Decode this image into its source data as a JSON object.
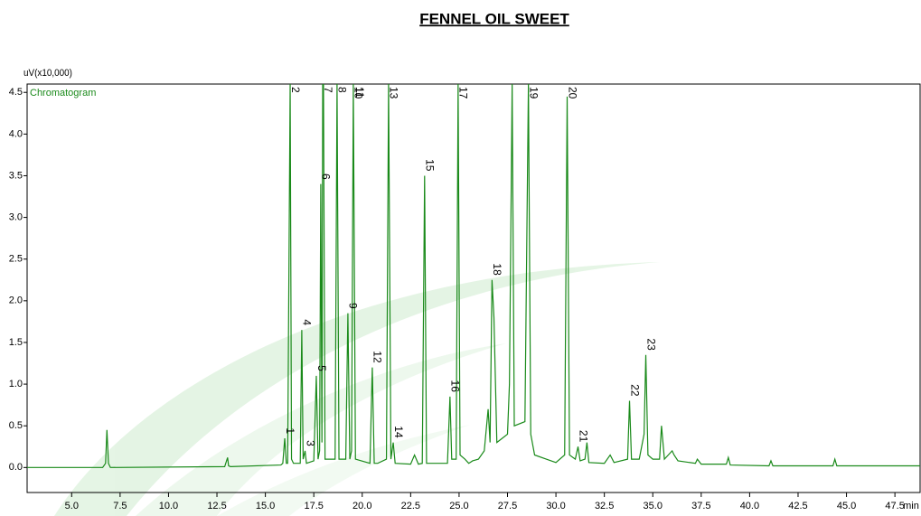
{
  "chart_data": {
    "type": "line",
    "title": "FENNEL OIL SWEET",
    "y_label": "uV(x10,000)",
    "x_unit": "min",
    "xlim": [
      2.7,
      48.8
    ],
    "ylim": [
      -0.3,
      4.6
    ],
    "xticks": [
      {
        "value": 5,
        "label": "5.0"
      },
      7.5,
      {
        "value": 10,
        "label": "10.0"
      },
      12.5,
      {
        "value": 15,
        "label": "15.0"
      },
      17.5,
      {
        "value": 20,
        "label": "20.0"
      },
      22.5,
      {
        "value": 25,
        "label": "25.0"
      },
      27.5,
      {
        "value": 30,
        "label": "30.0"
      },
      32.5,
      {
        "value": 35,
        "label": "35.0"
      },
      37.5,
      {
        "value": 40,
        "label": "40.0"
      },
      42.5,
      {
        "value": 45,
        "label": "45.0"
      },
      47.5
    ],
    "yticks": [
      {
        "value": 0,
        "label": "0.0"
      },
      0.5,
      {
        "value": 1,
        "label": "1.0"
      },
      1.5,
      {
        "value": 2,
        "label": "2.0"
      },
      2.5,
      {
        "value": 3,
        "label": "3.0"
      },
      3.5,
      {
        "value": 4,
        "label": "4.0"
      },
      4.5
    ],
    "x": [
      2.7,
      6.6,
      6.75,
      6.82,
      6.9,
      7.0,
      12.9,
      13.05,
      13.1,
      13.2,
      15.8,
      15.9,
      16.0,
      16.08,
      16.15,
      16.28,
      16.35,
      16.45,
      16.8,
      16.88,
      16.95,
      17.05,
      17.12,
      17.5,
      17.63,
      17.72,
      17.8,
      17.86,
      17.92,
      17.96,
      18.0,
      18.08,
      18.6,
      18.7,
      18.8,
      19.15,
      19.26,
      19.36,
      19.45,
      19.54,
      19.65,
      20.4,
      20.52,
      20.62,
      20.8,
      21.25,
      21.36,
      21.48,
      21.6,
      21.7,
      22.5,
      22.7,
      22.9,
      23.1,
      23.22,
      23.32,
      24.4,
      24.53,
      24.62,
      24.85,
      24.95,
      25.05,
      25.3,
      25.5,
      25.7,
      26.0,
      26.3,
      26.5,
      26.6,
      26.7,
      26.8,
      26.95,
      27.5,
      27.6,
      27.74,
      27.85,
      28.4,
      28.58,
      28.7,
      28.9,
      29.5,
      30.0,
      30.45,
      30.58,
      30.7,
      31.0,
      31.14,
      31.25,
      31.5,
      31.6,
      31.7,
      32.5,
      32.8,
      33.0,
      33.7,
      33.8,
      33.9,
      34.3,
      34.55,
      34.64,
      34.75,
      35.0,
      35.35,
      35.45,
      35.6,
      36.0,
      36.1,
      36.3,
      37.2,
      37.3,
      37.5,
      38.8,
      38.9,
      39.0,
      41.0,
      41.1,
      41.2,
      44.3,
      44.4,
      44.5,
      48.8
    ],
    "series": [
      {
        "name": "Chromatogram",
        "color": "#1a8a1a",
        "values": [
          0,
          0,
          0.05,
          0.45,
          0.05,
          0,
          0.01,
          0.12,
          0.02,
          0.01,
          0.03,
          0.05,
          0.35,
          0.05,
          0.05,
          4.6,
          0.1,
          0.05,
          0.05,
          1.65,
          0.1,
          0.2,
          0.05,
          0.08,
          1.1,
          0.1,
          0.2,
          3.4,
          0.3,
          4.6,
          4.6,
          0.1,
          0.1,
          4.6,
          0.1,
          0.1,
          1.85,
          0.1,
          0.2,
          4.6,
          0.1,
          0.05,
          1.2,
          0.05,
          0.05,
          0.1,
          4.6,
          0.1,
          0.3,
          0.05,
          0.04,
          0.15,
          0.04,
          0.05,
          3.5,
          0.05,
          0.05,
          0.85,
          0.1,
          0.1,
          4.6,
          0.15,
          0.1,
          0.05,
          0.08,
          0.1,
          0.2,
          0.7,
          0.3,
          2.25,
          1.8,
          0.3,
          0.4,
          1.0,
          4.6,
          0.5,
          0.55,
          4.6,
          0.4,
          0.15,
          0.1,
          0.06,
          0.15,
          4.45,
          0.15,
          0.1,
          0.25,
          0.08,
          0.1,
          0.3,
          0.06,
          0.05,
          0.15,
          0.06,
          0.1,
          0.8,
          0.1,
          0.1,
          0.4,
          1.35,
          0.15,
          0.1,
          0.1,
          0.5,
          0.1,
          0.2,
          0.15,
          0.08,
          0.05,
          0.1,
          0.04,
          0.04,
          0.12,
          0.03,
          0.02,
          0.08,
          0.02,
          0.02,
          0.1,
          0.02,
          0.02
        ]
      }
    ],
    "annotations": [
      {
        "label": "1",
        "x": 16.0,
        "y": 0.35
      },
      {
        "label": "2",
        "x": 16.28,
        "y": 4.6
      },
      {
        "label": "3",
        "x": 17.05,
        "y": 0.2
      },
      {
        "label": "4",
        "x": 16.88,
        "y": 1.65
      },
      {
        "label": "5",
        "x": 17.63,
        "y": 1.1
      },
      {
        "label": "6",
        "x": 17.86,
        "y": 3.4
      },
      {
        "label": "7",
        "x": 17.96,
        "y": 4.6
      },
      {
        "label": "8",
        "x": 18.7,
        "y": 4.6
      },
      {
        "label": "9",
        "x": 19.26,
        "y": 1.85
      },
      {
        "label": "10",
        "x": 19.54,
        "y": 4.6
      },
      {
        "label": "11",
        "x": 19.6,
        "y": 4.6
      },
      {
        "label": "12",
        "x": 20.52,
        "y": 1.2
      },
      {
        "label": "13",
        "x": 21.36,
        "y": 4.6
      },
      {
        "label": "14",
        "x": 21.6,
        "y": 0.3
      },
      {
        "label": "15",
        "x": 23.22,
        "y": 3.5
      },
      {
        "label": "16",
        "x": 24.53,
        "y": 0.85
      },
      {
        "label": "17",
        "x": 24.95,
        "y": 4.6
      },
      {
        "label": "18",
        "x": 26.7,
        "y": 2.25
      },
      {
        "label": "19",
        "x": 28.58,
        "y": 4.6
      },
      {
        "label": "20",
        "x": 30.58,
        "y": 4.45
      },
      {
        "label": "21",
        "x": 31.14,
        "y": 0.25
      },
      {
        "label": "22",
        "x": 33.8,
        "y": 0.8
      },
      {
        "label": "23",
        "x": 34.64,
        "y": 1.35
      }
    ]
  }
}
